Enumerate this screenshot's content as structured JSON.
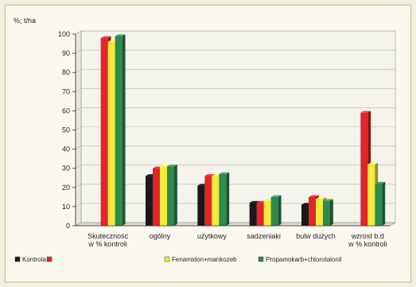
{
  "chart_data": {
    "type": "bar",
    "title": "",
    "ylabel": "%; t/ha",
    "xlabel": "",
    "ylim": [
      0,
      100
    ],
    "yticks": [
      0,
      10,
      20,
      30,
      40,
      50,
      60,
      70,
      80,
      90,
      100
    ],
    "grid": true,
    "legend_position": "bottom",
    "categories": [
      [
        "Skuteczność",
        "w % kontroli"
      ],
      [
        "ogólny"
      ],
      [
        "użytkowy"
      ],
      [
        "sadzeniaki"
      ],
      [
        "bulw dużych"
      ],
      [
        "wzrost b.d",
        "w % kontroli"
      ]
    ],
    "series": [
      {
        "name": "Kontrola",
        "color": "#1a1a1a",
        "values": [
          null,
          26,
          21,
          12,
          11,
          null
        ]
      },
      {
        "name": "",
        "color": "#e0262b",
        "values": [
          98,
          30,
          26,
          12,
          15,
          59
        ]
      },
      {
        "name": "Fenamidon+mankozeb",
        "color": "#f2ea3c",
        "values": [
          96,
          31,
          26,
          13,
          14,
          32
        ]
      },
      {
        "name": "Propamokarb+chlorotalonil",
        "color": "#2e8a4e",
        "values": [
          99,
          31,
          27,
          15,
          13,
          22
        ]
      }
    ]
  }
}
